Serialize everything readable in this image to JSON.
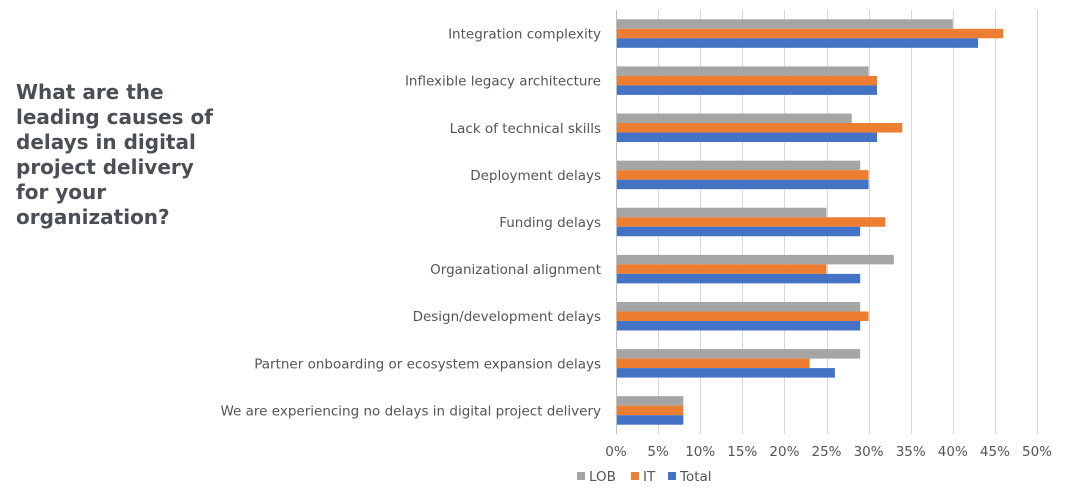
{
  "question": "What are the leading causes of delays in digital project delivery for your organization?",
  "chart_data": {
    "type": "bar",
    "orientation": "horizontal",
    "title": "What are the leading causes of delays in digital project delivery for your organization?",
    "categories": [
      "Integration complexity",
      "Inflexible legacy architecture",
      "Lack of technical skills",
      "Deployment delays",
      "Funding delays",
      "Organizational alignment",
      "Design/development delays",
      "Partner onboarding or ecosystem expansion delays",
      "We are experiencing no delays in digital project delivery"
    ],
    "series": [
      {
        "name": "LOB",
        "color": "#a5a5a5",
        "values": [
          40,
          30,
          28,
          29,
          25,
          33,
          29,
          29,
          8
        ]
      },
      {
        "name": "IT",
        "color": "#ed7d31",
        "values": [
          46,
          31,
          34,
          30,
          32,
          25,
          30,
          23,
          8
        ]
      },
      {
        "name": "Total",
        "color": "#4472c4",
        "values": [
          43,
          31,
          31,
          30,
          29,
          29,
          29,
          26,
          8
        ]
      }
    ],
    "xlim": [
      0,
      50
    ],
    "xticks": [
      "0%",
      "5%",
      "10%",
      "15%",
      "20%",
      "25%",
      "30%",
      "35%",
      "40%",
      "45%",
      "50%"
    ],
    "grid": true,
    "legend": "bottom"
  }
}
